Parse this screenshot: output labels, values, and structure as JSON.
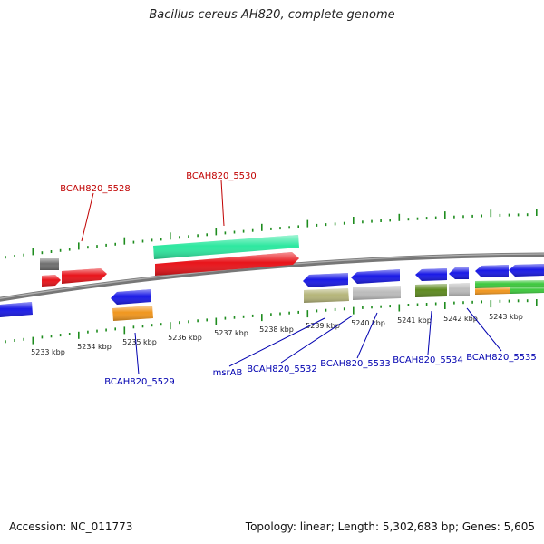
{
  "title": "Bacillus cereus AH820, complete genome",
  "footer": {
    "accession_label": "Accession:",
    "accession": "NC_011773",
    "topology_label": "Topology:",
    "topology": "linear",
    "length_label": "Length:",
    "length": "5,302,683 bp",
    "genes_label": "Genes:",
    "genes": "5,605"
  },
  "colors": {
    "red": "#e8141a",
    "blue": "#1a1ae6",
    "teal": "#2ee8a0",
    "gray": "#707070",
    "olive": "#b5b57a",
    "silver": "#bcbcbc",
    "dark-olive": "#5e8a20",
    "orange": "#f0961e",
    "green": "#3dc83d",
    "tick-green": "#1e8c1e",
    "label-red": "#c00000",
    "label-blue": "#0000b0"
  },
  "kbp_ticks": [
    "5233 kbp",
    "5234 kbp",
    "5235 kbp",
    "5236 kbp",
    "5237 kbp",
    "5238 kbp",
    "5239 kbp",
    "5240 kbp",
    "5241 kbp",
    "5242 kbp",
    "5243 kbp"
  ],
  "gene_labels": {
    "top": [
      "BCAH820_5528",
      "BCAH820_5530"
    ],
    "bottom": [
      "BCAH820_5529",
      "msrAB",
      "BCAH820_5532",
      "BCAH820_5533",
      "BCAH820_5534",
      "BCAH820_5535"
    ]
  }
}
